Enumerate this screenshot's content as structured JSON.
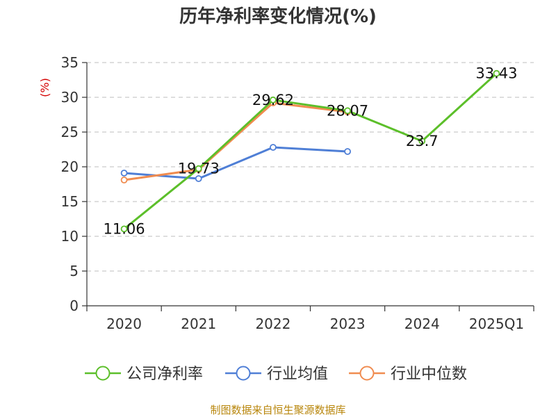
{
  "chart_data": {
    "type": "line",
    "title": "历年净利率变化情况(%)",
    "ylabel": "(%)",
    "xlabel": "",
    "categories": [
      "2020",
      "2021",
      "2022",
      "2023",
      "2024",
      "2025Q1"
    ],
    "ylim": [
      0,
      35
    ],
    "yticks": [
      "0",
      "5",
      "10",
      "15",
      "20",
      "25",
      "30",
      "35"
    ],
    "grid": true,
    "legend_position": "bottom",
    "series": [
      {
        "name": "公司净利率",
        "color": "#5cbf2a",
        "values": [
          11.06,
          19.73,
          29.62,
          28.07,
          23.7,
          33.43
        ],
        "labels": [
          "11.06",
          "19.73",
          "29.62",
          "28.07",
          "23.7",
          "33.43"
        ]
      },
      {
        "name": "行业均值",
        "color": "#4f7fd6",
        "values": [
          19.1,
          18.3,
          22.8,
          22.2,
          null,
          null
        ]
      },
      {
        "name": "行业中位数",
        "color": "#f08c50",
        "values": [
          18.1,
          19.6,
          29.2,
          27.9,
          null,
          null
        ]
      }
    ]
  },
  "footer": {
    "source": "制图数据来自恒生聚源数据库"
  }
}
